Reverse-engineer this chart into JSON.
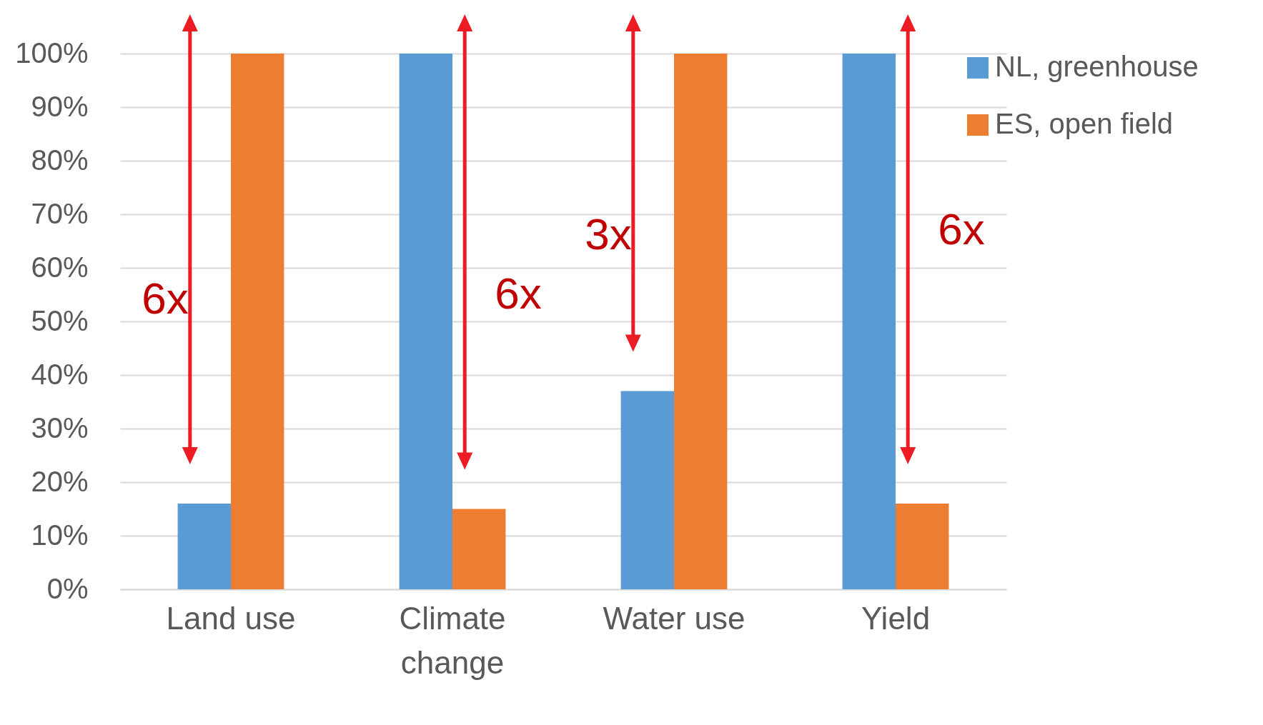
{
  "chart_data": {
    "type": "bar",
    "categories": [
      "Land use",
      "Climate change",
      "Water use",
      "Yield"
    ],
    "series": [
      {
        "name": "NL, greenhouse",
        "color": "#5b9bd5",
        "values": [
          16,
          100,
          37,
          100
        ]
      },
      {
        "name": "ES, open field",
        "color": "#ed7d31",
        "values": [
          100,
          15,
          100,
          16
        ]
      }
    ],
    "ylim": [
      0,
      100
    ],
    "yticks": [
      {
        "value": 0,
        "label": "0%"
      },
      {
        "value": 10,
        "label": "10%"
      },
      {
        "value": 20,
        "label": "20%"
      },
      {
        "value": 30,
        "label": "30%"
      },
      {
        "value": 40,
        "label": "40%"
      },
      {
        "value": 50,
        "label": "50%"
      },
      {
        "value": 60,
        "label": "60%"
      },
      {
        "value": 70,
        "label": "70%"
      },
      {
        "value": 80,
        "label": "80%"
      },
      {
        "value": 90,
        "label": "90%"
      },
      {
        "value": 100,
        "label": "100%"
      }
    ],
    "grid": "y",
    "legend": "right",
    "annotations": [
      {
        "text": "6x",
        "x": "Land use",
        "y": 54
      },
      {
        "text": "6x",
        "x": "Climate change",
        "y": 55
      },
      {
        "text": "3x",
        "x": "Water use",
        "y": 66
      },
      {
        "text": "6x",
        "x": "Yield",
        "y": 67
      }
    ]
  }
}
